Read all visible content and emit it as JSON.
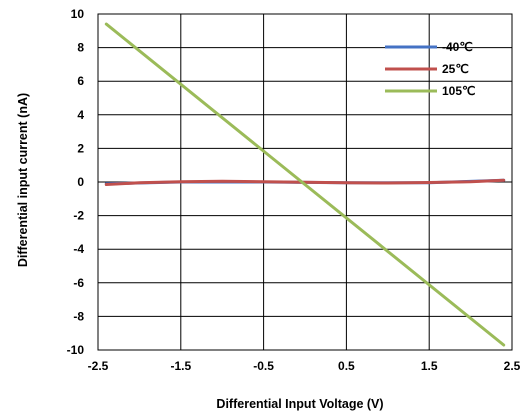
{
  "chart_data": {
    "type": "line",
    "xlabel": "Differential Input Voltage (V)",
    "ylabel": "Differential input current (nA)",
    "xlim": [
      -2.5,
      2.5
    ],
    "ylim": [
      -10,
      10
    ],
    "xticks": [
      -2.5,
      -1.5,
      -0.5,
      0.5,
      1.5,
      2.5
    ],
    "yticks": [
      10,
      8,
      6,
      4,
      2,
      0,
      -2,
      -4,
      -6,
      -8,
      -10
    ],
    "grid": "horizontal",
    "legend_position": "top-right",
    "series": [
      {
        "name": "-40℃",
        "color": "#4472C4",
        "x": [
          -2.4,
          -1.5,
          -0.5,
          0.5,
          1.5,
          2.4
        ],
        "y": [
          -0.1,
          0.0,
          0.0,
          -0.05,
          -0.05,
          0.1
        ]
      },
      {
        "name": "25℃",
        "color": "#C0504D",
        "x": [
          -2.4,
          -2.0,
          -1.5,
          -1.0,
          -0.5,
          0.0,
          0.5,
          1.0,
          1.5,
          2.0,
          2.4
        ],
        "y": [
          -0.15,
          -0.05,
          0.02,
          0.05,
          0.02,
          -0.02,
          -0.05,
          -0.06,
          -0.03,
          0.02,
          0.1
        ]
      },
      {
        "name": "105℃",
        "color": "#9BBB59",
        "x": [
          -2.4,
          2.4
        ],
        "y": [
          9.4,
          -9.7
        ]
      }
    ]
  }
}
